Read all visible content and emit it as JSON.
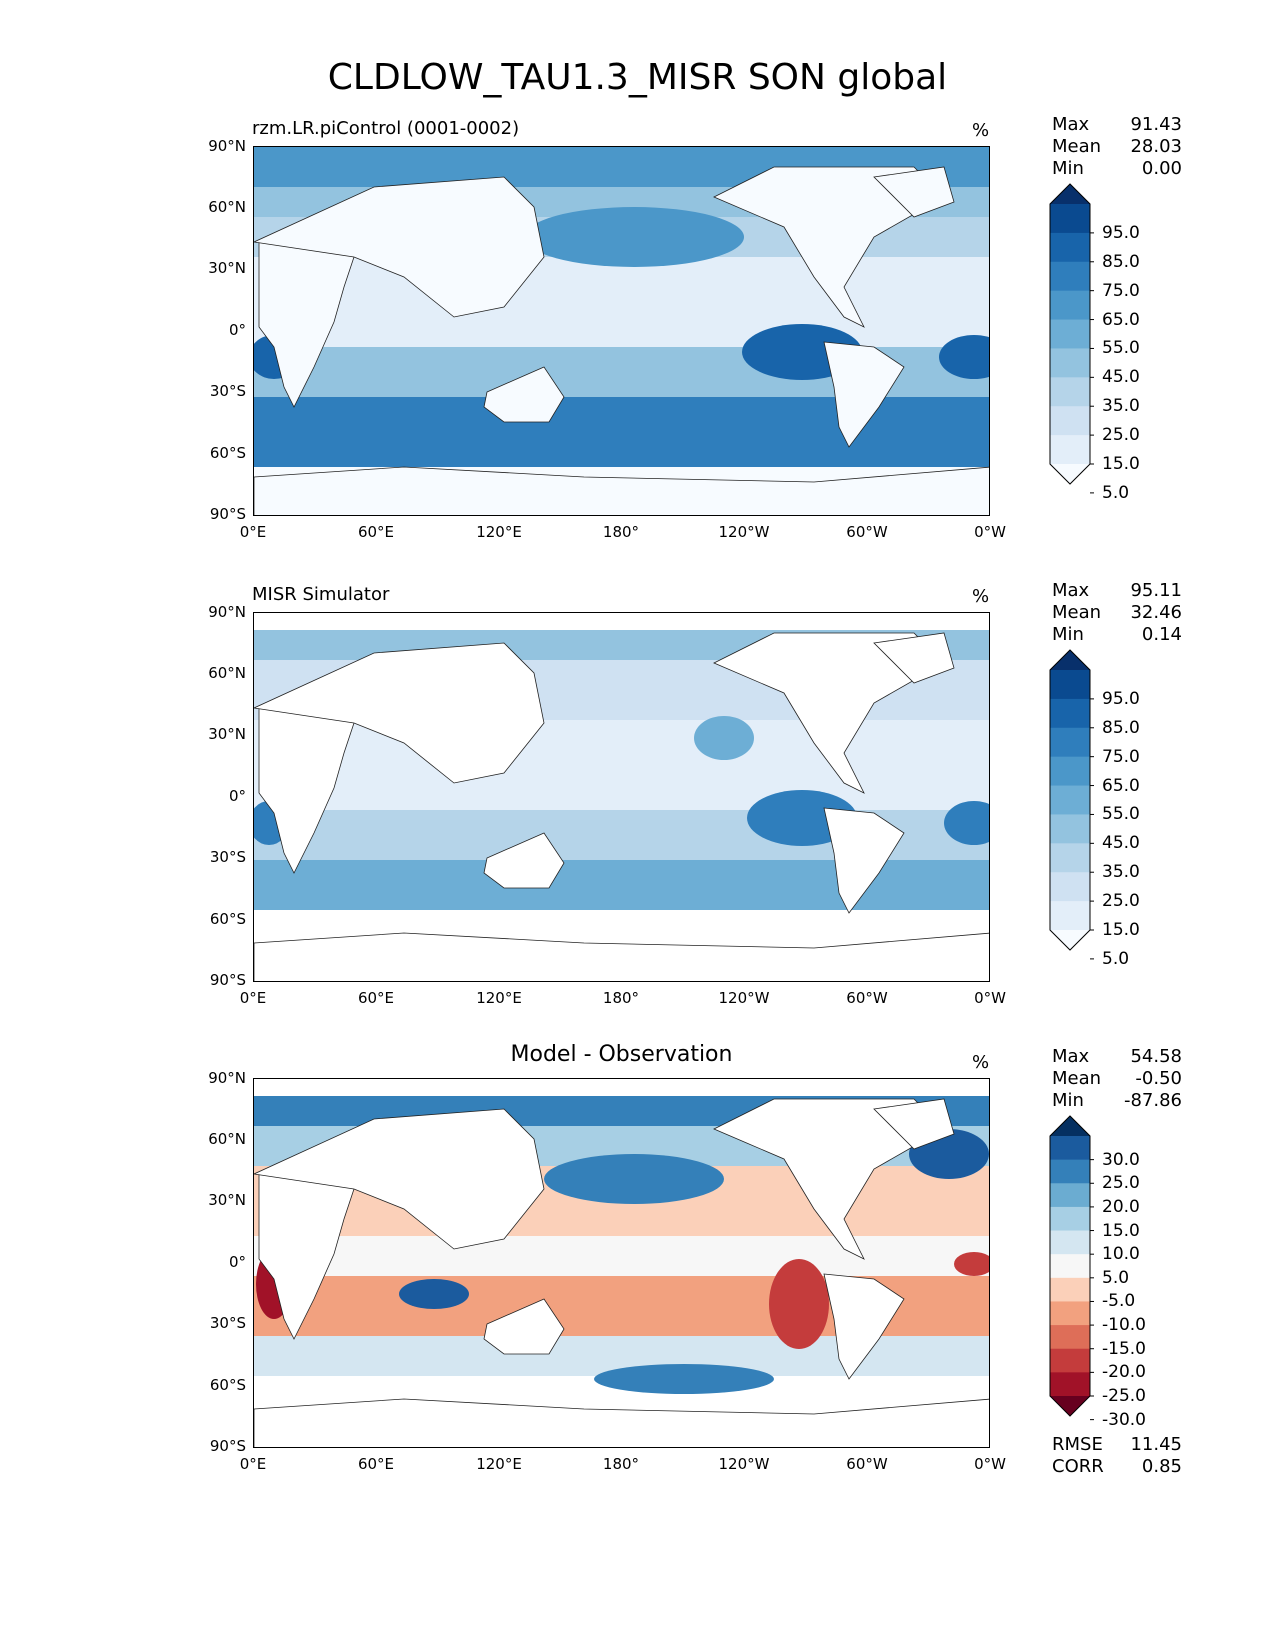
{
  "figure_title": "CLDLOW_TAU1.3_MISR SON global",
  "axes": {
    "lat_ticks": [
      "90°N",
      "60°N",
      "30°N",
      "0°",
      "30°S",
      "60°S",
      "90°S"
    ],
    "lon_ticks": [
      "0°E",
      "60°E",
      "120°E",
      "180°",
      "120°W",
      "60°W",
      "0°W"
    ]
  },
  "colors": {
    "blues": [
      "#f7fbff",
      "#e3eef9",
      "#cfe1f2",
      "#b5d4e9",
      "#93c3df",
      "#6daed5",
      "#4b97c9",
      "#2f7ebc",
      "#1864aa",
      "#0a4a90",
      "#08306b"
    ],
    "diverging": [
      "#67001f",
      "#a11228",
      "#c43c3c",
      "#de6e58",
      "#f2a17f",
      "#fbd0b9",
      "#f7f7f7",
      "#d4e6f1",
      "#a7cfe4",
      "#6bacd1",
      "#3480b9",
      "#1b5b9e",
      "#053061"
    ]
  },
  "panels": [
    {
      "title": "rzm.LR.piControl (0001-0002)",
      "units": "%",
      "stats": [
        {
          "label": "Max",
          "value": "91.43"
        },
        {
          "label": "Mean",
          "value": "28.03"
        },
        {
          "label": "Min",
          "value": "0.00"
        }
      ],
      "colorbar": {
        "type": "sequential",
        "labels": [
          "95.0",
          "85.0",
          "75.0",
          "65.0",
          "55.0",
          "45.0",
          "35.0",
          "25.0",
          "15.0",
          "5.0"
        ]
      }
    },
    {
      "title": "MISR Simulator",
      "units": "%",
      "stats": [
        {
          "label": "Max",
          "value": "95.11"
        },
        {
          "label": "Mean",
          "value": "32.46"
        },
        {
          "label": "Min",
          "value": "0.14"
        }
      ],
      "colorbar": {
        "type": "sequential",
        "labels": [
          "95.0",
          "85.0",
          "75.0",
          "65.0",
          "55.0",
          "45.0",
          "35.0",
          "25.0",
          "15.0",
          "5.0"
        ]
      }
    },
    {
      "title": "Model - Observation",
      "units": "%",
      "stats": [
        {
          "label": "Max",
          "value": "54.58"
        },
        {
          "label": "Mean",
          "value": "-0.50"
        },
        {
          "label": "Min",
          "value": "-87.86"
        }
      ],
      "colorbar": {
        "type": "diverging",
        "labels": [
          "30.0",
          "25.0",
          "20.0",
          "15.0",
          "10.0",
          "5.0",
          "-5.0",
          "-10.0",
          "-15.0",
          "-20.0",
          "-25.0",
          "-30.0"
        ]
      },
      "metrics": [
        {
          "label": "RMSE",
          "value": "11.45"
        },
        {
          "label": "CORR",
          "value": "0.85"
        }
      ]
    }
  ]
}
